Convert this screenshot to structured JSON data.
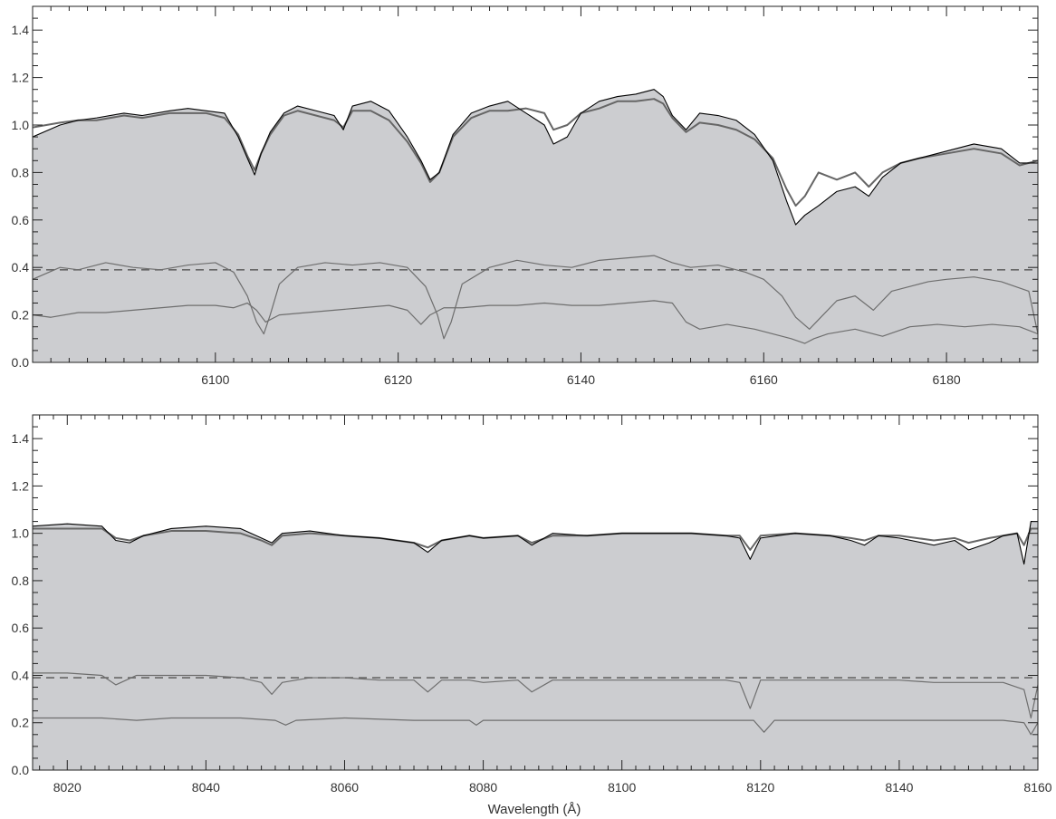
{
  "colors": {
    "background": "#ffffff",
    "fill": "#cccdd0",
    "observed": "#000000",
    "model": "#666666",
    "components": "#6e6e6e",
    "reference_line": "#666666",
    "frame": "#222222"
  },
  "chart_data": [
    {
      "type": "line",
      "panel": "top",
      "xlabel": "",
      "ylabel": "",
      "xlim": [
        6080,
        6190
      ],
      "ylim": [
        0,
        1.5
      ],
      "xticks": [
        6100,
        6120,
        6140,
        6160,
        6180
      ],
      "xtick_labels": [
        "6100",
        "6120",
        "6140",
        "6160",
        "6180"
      ],
      "yticks": [
        0.0,
        0.2,
        0.4,
        0.6,
        0.8,
        1.0,
        1.2,
        1.4
      ],
      "ytick_labels": [
        "0.0",
        "0.2",
        "0.4",
        "0.6",
        "0.8",
        "1.0",
        "1.2",
        "1.4"
      ],
      "grid": false,
      "reference_line": {
        "y": 0.39,
        "style": "dashed"
      },
      "series": [
        {
          "role": "observed",
          "x": [
            6080,
            6083,
            6085,
            6087,
            6090,
            6092,
            6095,
            6097,
            6099,
            6101,
            6102.5,
            6103.5,
            6104.3,
            6105,
            6106,
            6107.5,
            6109,
            6111,
            6113,
            6114,
            6115,
            6117,
            6119,
            6121,
            6122.5,
            6123.5,
            6124.5,
            6126,
            6128,
            6130,
            6132,
            6134,
            6136,
            6137,
            6138.5,
            6140,
            6142,
            6144,
            6146,
            6148,
            6149,
            6150,
            6151.5,
            6153,
            6155,
            6157,
            6159,
            6161,
            6162.5,
            6163.5,
            6164.5,
            6166,
            6168,
            6170,
            6171.5,
            6173,
            6175,
            6177,
            6180,
            6183,
            6186,
            6188,
            6190
          ],
          "y": [
            0.95,
            1.0,
            1.02,
            1.03,
            1.05,
            1.04,
            1.06,
            1.07,
            1.06,
            1.05,
            0.95,
            0.86,
            0.79,
            0.88,
            0.97,
            1.05,
            1.08,
            1.06,
            1.04,
            0.98,
            1.08,
            1.1,
            1.06,
            0.95,
            0.85,
            0.77,
            0.8,
            0.96,
            1.05,
            1.08,
            1.1,
            1.05,
            1.0,
            0.92,
            0.95,
            1.05,
            1.1,
            1.12,
            1.13,
            1.15,
            1.12,
            1.04,
            0.98,
            1.05,
            1.04,
            1.02,
            0.96,
            0.85,
            0.68,
            0.58,
            0.62,
            0.66,
            0.72,
            0.74,
            0.7,
            0.78,
            0.84,
            0.86,
            0.89,
            0.92,
            0.9,
            0.84,
            0.84
          ]
        },
        {
          "role": "model",
          "x": [
            6080,
            6083,
            6085,
            6087,
            6090,
            6092,
            6095,
            6097,
            6099,
            6101,
            6102.5,
            6103.5,
            6104.3,
            6105,
            6106,
            6107.5,
            6109,
            6111,
            6113,
            6114,
            6115,
            6117,
            6119,
            6121,
            6122.5,
            6123.5,
            6124.5,
            6126,
            6128,
            6130,
            6132,
            6134,
            6136,
            6137,
            6138.5,
            6140,
            6142,
            6144,
            6146,
            6148,
            6149,
            6150,
            6151.5,
            6153,
            6155,
            6157,
            6159,
            6161,
            6162.5,
            6163.5,
            6164.5,
            6166,
            6168,
            6170,
            6171.5,
            6173,
            6175,
            6177,
            6180,
            6183,
            6186,
            6188,
            6190
          ],
          "y": [
            0.99,
            1.01,
            1.02,
            1.02,
            1.04,
            1.03,
            1.05,
            1.05,
            1.05,
            1.03,
            0.96,
            0.87,
            0.81,
            0.88,
            0.96,
            1.04,
            1.06,
            1.04,
            1.02,
            0.99,
            1.06,
            1.06,
            1.02,
            0.93,
            0.84,
            0.76,
            0.8,
            0.95,
            1.03,
            1.06,
            1.06,
            1.07,
            1.05,
            0.98,
            1.0,
            1.05,
            1.07,
            1.1,
            1.1,
            1.11,
            1.09,
            1.03,
            0.97,
            1.01,
            1.0,
            0.98,
            0.94,
            0.86,
            0.73,
            0.66,
            0.7,
            0.8,
            0.77,
            0.8,
            0.74,
            0.8,
            0.84,
            0.86,
            0.88,
            0.9,
            0.88,
            0.83,
            0.85
          ]
        },
        {
          "role": "component-upper",
          "x": [
            6080,
            6083,
            6085,
            6088,
            6091,
            6094,
            6097,
            6100,
            6102,
            6103.5,
            6104.5,
            6105.3,
            6106,
            6107,
            6109,
            6112,
            6115,
            6118,
            6121,
            6123,
            6124.3,
            6125,
            6125.8,
            6127,
            6130,
            6133,
            6136,
            6139,
            6142,
            6145,
            6148,
            6150,
            6152,
            6155,
            6158,
            6160,
            6162,
            6163.5,
            6165,
            6166.5,
            6168,
            6170,
            6172,
            6174,
            6176,
            6178,
            6180,
            6183,
            6186,
            6189,
            6190
          ],
          "y": [
            0.35,
            0.4,
            0.39,
            0.42,
            0.4,
            0.39,
            0.41,
            0.42,
            0.38,
            0.28,
            0.17,
            0.12,
            0.2,
            0.33,
            0.4,
            0.42,
            0.41,
            0.42,
            0.4,
            0.32,
            0.2,
            0.1,
            0.17,
            0.33,
            0.4,
            0.43,
            0.41,
            0.4,
            0.43,
            0.44,
            0.45,
            0.42,
            0.4,
            0.41,
            0.38,
            0.35,
            0.28,
            0.19,
            0.14,
            0.2,
            0.26,
            0.28,
            0.22,
            0.3,
            0.32,
            0.34,
            0.35,
            0.36,
            0.34,
            0.3,
            0.12
          ]
        },
        {
          "role": "component-lower",
          "x": [
            6080,
            6082,
            6085,
            6088,
            6091,
            6094,
            6097,
            6100,
            6102,
            6103.5,
            6104.5,
            6105.5,
            6107,
            6110,
            6113,
            6116,
            6119,
            6121,
            6122.5,
            6123.5,
            6125,
            6127,
            6130,
            6133,
            6136,
            6139,
            6142,
            6145,
            6148,
            6150,
            6151.5,
            6153,
            6156,
            6159,
            6161,
            6163,
            6164.5,
            6165.5,
            6167,
            6170,
            6173,
            6176,
            6179,
            6182,
            6185,
            6188,
            6190
          ],
          "y": [
            0.2,
            0.19,
            0.21,
            0.21,
            0.22,
            0.23,
            0.24,
            0.24,
            0.23,
            0.25,
            0.22,
            0.17,
            0.2,
            0.21,
            0.22,
            0.23,
            0.24,
            0.22,
            0.16,
            0.2,
            0.23,
            0.23,
            0.24,
            0.24,
            0.25,
            0.24,
            0.24,
            0.25,
            0.26,
            0.25,
            0.17,
            0.14,
            0.16,
            0.14,
            0.12,
            0.1,
            0.08,
            0.1,
            0.12,
            0.14,
            0.11,
            0.15,
            0.16,
            0.15,
            0.16,
            0.15,
            0.12
          ]
        }
      ]
    },
    {
      "type": "line",
      "panel": "bottom",
      "xlabel": "Wavelength (Å)",
      "ylabel": "",
      "xlim": [
        8015,
        8160
      ],
      "ylim": [
        0,
        1.5
      ],
      "xticks": [
        8020,
        8040,
        8060,
        8080,
        8100,
        8120,
        8140,
        8160
      ],
      "xtick_labels": [
        "8020",
        "8040",
        "8060",
        "8080",
        "8100",
        "8120",
        "8140",
        "8160"
      ],
      "yticks": [
        0.0,
        0.2,
        0.4,
        0.6,
        0.8,
        1.0,
        1.2,
        1.4
      ],
      "ytick_labels": [
        "0.0",
        "0.2",
        "0.4",
        "0.6",
        "0.8",
        "1.0",
        "1.2",
        "1.4"
      ],
      "grid": false,
      "reference_line": {
        "y": 0.39,
        "style": "dashed"
      },
      "series": [
        {
          "role": "observed",
          "x": [
            8015,
            8020,
            8025,
            8027,
            8029,
            8031,
            8035,
            8040,
            8045,
            8048,
            8049.5,
            8051,
            8055,
            8060,
            8065,
            8070,
            8072,
            8074,
            8078,
            8080,
            8085,
            8087,
            8090,
            8095,
            8100,
            8105,
            8110,
            8115,
            8117,
            8118.5,
            8120,
            8125,
            8130,
            8133,
            8135,
            8137,
            8140,
            8145,
            8148,
            8150,
            8153,
            8155,
            8157,
            8158,
            8159,
            8160
          ],
          "y": [
            1.03,
            1.04,
            1.03,
            0.97,
            0.96,
            0.99,
            1.02,
            1.03,
            1.02,
            0.98,
            0.96,
            1.0,
            1.01,
            0.99,
            0.98,
            0.96,
            0.92,
            0.97,
            0.99,
            0.98,
            0.99,
            0.95,
            1.0,
            0.99,
            1.0,
            1.0,
            1.0,
            0.99,
            0.98,
            0.89,
            0.98,
            1.0,
            0.99,
            0.97,
            0.95,
            0.99,
            0.98,
            0.95,
            0.97,
            0.93,
            0.96,
            0.99,
            1.0,
            0.87,
            1.05,
            1.05
          ]
        },
        {
          "role": "model",
          "x": [
            8015,
            8020,
            8025,
            8027,
            8029,
            8031,
            8035,
            8040,
            8045,
            8048,
            8049.5,
            8051,
            8055,
            8060,
            8065,
            8070,
            8072,
            8074,
            8078,
            8080,
            8085,
            8087,
            8090,
            8095,
            8100,
            8105,
            8110,
            8115,
            8117,
            8118.5,
            8120,
            8125,
            8130,
            8133,
            8135,
            8137,
            8140,
            8145,
            8148,
            8150,
            8153,
            8155,
            8157,
            8158,
            8159,
            8160
          ],
          "y": [
            1.02,
            1.02,
            1.02,
            0.98,
            0.97,
            0.99,
            1.01,
            1.01,
            1.0,
            0.97,
            0.95,
            0.99,
            1.0,
            0.99,
            0.98,
            0.96,
            0.94,
            0.97,
            0.99,
            0.98,
            0.99,
            0.96,
            0.99,
            0.99,
            1.0,
            1.0,
            1.0,
            0.99,
            0.99,
            0.93,
            0.99,
            1.0,
            0.99,
            0.98,
            0.97,
            0.99,
            0.99,
            0.97,
            0.98,
            0.96,
            0.98,
            0.99,
            1.0,
            0.95,
            1.02,
            1.02
          ]
        },
        {
          "role": "component-upper",
          "x": [
            8015,
            8020,
            8025,
            8027,
            8030,
            8035,
            8040,
            8045,
            8048,
            8049.5,
            8051,
            8055,
            8060,
            8065,
            8070,
            8072,
            8074,
            8078,
            8080,
            8085,
            8087,
            8090,
            8095,
            8100,
            8105,
            8110,
            8115,
            8117,
            8118.5,
            8120,
            8125,
            8130,
            8135,
            8140,
            8145,
            8150,
            8155,
            8158,
            8159,
            8160
          ],
          "y": [
            0.41,
            0.41,
            0.4,
            0.36,
            0.4,
            0.4,
            0.4,
            0.39,
            0.37,
            0.32,
            0.37,
            0.39,
            0.39,
            0.38,
            0.38,
            0.33,
            0.38,
            0.38,
            0.37,
            0.38,
            0.33,
            0.38,
            0.38,
            0.38,
            0.38,
            0.38,
            0.38,
            0.37,
            0.26,
            0.38,
            0.38,
            0.38,
            0.38,
            0.38,
            0.37,
            0.37,
            0.37,
            0.34,
            0.22,
            0.36
          ]
        },
        {
          "role": "component-lower",
          "x": [
            8015,
            8020,
            8025,
            8030,
            8035,
            8040,
            8045,
            8050,
            8051.5,
            8053,
            8060,
            8070,
            8075,
            8078,
            8079,
            8080,
            8085,
            8090,
            8095,
            8100,
            8105,
            8110,
            8115,
            8119,
            8120.5,
            8122,
            8125,
            8130,
            8135,
            8140,
            8145,
            8150,
            8155,
            8158,
            8159,
            8160
          ],
          "y": [
            0.22,
            0.22,
            0.22,
            0.21,
            0.22,
            0.22,
            0.22,
            0.21,
            0.19,
            0.21,
            0.22,
            0.21,
            0.21,
            0.21,
            0.19,
            0.21,
            0.21,
            0.21,
            0.21,
            0.21,
            0.21,
            0.21,
            0.21,
            0.21,
            0.16,
            0.21,
            0.21,
            0.21,
            0.21,
            0.21,
            0.21,
            0.21,
            0.21,
            0.2,
            0.15,
            0.2
          ]
        }
      ]
    }
  ]
}
